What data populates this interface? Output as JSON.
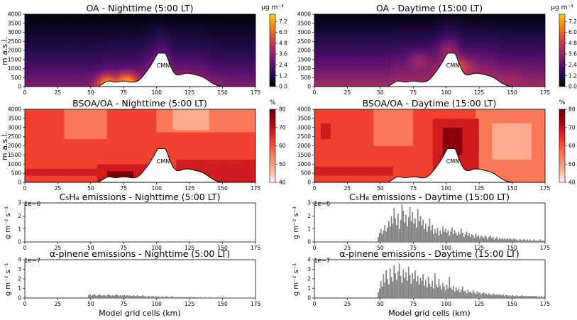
{
  "figure": {
    "xlabel_left": "Model grid cells (km)",
    "xlabel_right": "Model grid cells (km)",
    "mountain_label": "CMN",
    "colors": {
      "bar": "#808080",
      "mountain": "#ffffff",
      "oa_cmap": [
        "#000004",
        "#1f0c48",
        "#550f6d",
        "#88226a",
        "#ba3655",
        "#e35933",
        "#f98e09",
        "#fcd225"
      ],
      "bsoa_cmap": [
        "#fff5f0",
        "#fcbba1",
        "#fc9272",
        "#fb6a4a",
        "#ef3b2c",
        "#cb181d",
        "#99000d",
        "#67000d"
      ]
    }
  },
  "chart_data": [
    {
      "id": "oa_night",
      "type": "heatmap",
      "title": "OA - Nighttime (5:00 LT)",
      "ylabel": "m a.s.l.",
      "colorbar_unit": "µg m⁻³",
      "colorbar_ticks": [
        "0.0",
        "1.2",
        "2.4",
        "3.6",
        "4.8",
        "6.0",
        "7.2"
      ],
      "xlim": [
        0,
        175
      ],
      "ylim": [
        0,
        4000
      ],
      "xticks": [
        0,
        25,
        50,
        75,
        100,
        125,
        150,
        175
      ],
      "yticks": [
        0,
        500,
        1000,
        1500,
        2000,
        2500,
        3000,
        3500,
        4000
      ],
      "value_range": [
        0,
        8
      ],
      "profile": {
        "surface": 3.2,
        "top": 0.4,
        "decay_m": 2300,
        "hotspots": [
          [
            62,
            200,
            6.8
          ],
          [
            78,
            300,
            7.2
          ],
          [
            118,
            250,
            4.2
          ],
          [
            145,
            200,
            3.5
          ]
        ]
      }
    },
    {
      "id": "oa_day",
      "type": "heatmap",
      "title": "OA - Daytime (15:00 LT)",
      "ylabel": "",
      "colorbar_unit": "µg m⁻³",
      "colorbar_ticks": [
        "0.0",
        "1.2",
        "2.4",
        "3.6",
        "4.8",
        "6.0",
        "7.2"
      ],
      "xlim": [
        0,
        175
      ],
      "ylim": [
        0,
        4000
      ],
      "xticks": [
        0,
        25,
        50,
        75,
        100,
        125,
        150,
        175
      ],
      "yticks": [
        0,
        500,
        1000,
        1500,
        2000,
        2500,
        3000,
        3500,
        4000
      ],
      "value_range": [
        0,
        8
      ],
      "profile": {
        "surface": 4.0,
        "top": 0.4,
        "decay_m": 2800,
        "hotspots": [
          [
            80,
            1500,
            5.5
          ],
          [
            100,
            2200,
            5.0
          ],
          [
            112,
            1200,
            5.8
          ],
          [
            150,
            600,
            4.5
          ]
        ]
      }
    },
    {
      "id": "bsoa_night",
      "type": "heatmap",
      "title": "BSOA/OA - Nighttime (5:00 LT)",
      "ylabel": "m a.s.l.",
      "colorbar_unit": "%",
      "colorbar_ticks": [
        "40",
        "50",
        "60",
        "70",
        "80"
      ],
      "xlim": [
        0,
        175
      ],
      "ylim": [
        0,
        4000
      ],
      "xticks": [
        0,
        25,
        50,
        75,
        100,
        125,
        150,
        175
      ],
      "yticks": [
        0,
        500,
        1000,
        1500,
        2000,
        2500,
        3000,
        3500,
        4000
      ],
      "value_range": [
        40,
        80
      ],
      "regions": [
        {
          "value": 62,
          "x": [
            0,
            175
          ],
          "z": [
            0,
            4000
          ]
        },
        {
          "value": 55,
          "x": [
            30,
            62
          ],
          "z": [
            2400,
            4000
          ]
        },
        {
          "value": 55,
          "x": [
            100,
            175
          ],
          "z": [
            2800,
            4000
          ]
        },
        {
          "value": 48,
          "x": [
            112,
            140
          ],
          "z": [
            2900,
            4000
          ]
        },
        {
          "value": 68,
          "x": [
            0,
            80
          ],
          "z": [
            350,
            700
          ]
        },
        {
          "value": 68,
          "x": [
            55,
            100
          ],
          "z": [
            0,
            1000
          ]
        },
        {
          "value": 68,
          "x": [
            115,
            175
          ],
          "z": [
            0,
            1200
          ]
        },
        {
          "value": 78,
          "x": [
            62,
            82
          ],
          "z": [
            100,
            600
          ]
        }
      ]
    },
    {
      "id": "bsoa_day",
      "type": "heatmap",
      "title": "BSOA/OA - Daytime (15:00 LT)",
      "ylabel": "",
      "colorbar_unit": "%",
      "colorbar_ticks": [
        "40",
        "50",
        "60",
        "70",
        "80"
      ],
      "xlim": [
        0,
        175
      ],
      "ylim": [
        0,
        4000
      ],
      "xticks": [
        0,
        25,
        50,
        75,
        100,
        125,
        150,
        175
      ],
      "yticks": [
        0,
        500,
        1000,
        1500,
        2000,
        2500,
        3000,
        3500,
        4000
      ],
      "value_range": [
        40,
        80
      ],
      "regions": [
        {
          "value": 62,
          "x": [
            0,
            175
          ],
          "z": [
            0,
            4000
          ]
        },
        {
          "value": 55,
          "x": [
            45,
            75
          ],
          "z": [
            2000,
            4000
          ]
        },
        {
          "value": 55,
          "x": [
            122,
            175
          ],
          "z": [
            0,
            4000
          ]
        },
        {
          "value": 48,
          "x": [
            135,
            165
          ],
          "z": [
            1200,
            3200
          ]
        },
        {
          "value": 68,
          "x": [
            0,
            60
          ],
          "z": [
            350,
            900
          ]
        },
        {
          "value": 68,
          "x": [
            90,
            125
          ],
          "z": [
            500,
            3500
          ]
        },
        {
          "value": 68,
          "x": [
            5,
            12
          ],
          "z": [
            2400,
            3200
          ]
        },
        {
          "value": 76,
          "x": [
            98,
            112
          ],
          "z": [
            1500,
            3000
          ]
        }
      ]
    },
    {
      "id": "c5h8_night",
      "type": "bar",
      "title": "C₅H₈ emissions - Nighttime (5:00 LT)",
      "ylabel": "g m⁻² s⁻¹",
      "offset_text": "1e−6",
      "xlim": [
        0,
        175
      ],
      "ylim": [
        0,
        3
      ],
      "xticks": [
        0,
        25,
        50,
        75,
        100,
        125,
        150,
        175
      ],
      "yticks": [
        0,
        1,
        2,
        3
      ],
      "values": []
    },
    {
      "id": "c5h8_day",
      "type": "bar",
      "title": "C₅H₈ emissions - Daytime (15:00 LT)",
      "ylabel": "g m⁻² s⁻¹",
      "offset_text": "1e−6",
      "xlim": [
        0,
        175
      ],
      "ylim": [
        0,
        3
      ],
      "xticks": [
        0,
        25,
        50,
        75,
        100,
        125,
        150,
        175
      ],
      "yticks": [
        0,
        1,
        2,
        3
      ],
      "x_start": 48,
      "values": [
        0.4,
        0.7,
        1.0,
        0.6,
        0.9,
        1.3,
        0.8,
        1.1,
        1.6,
        1.2,
        2.0,
        1.4,
        2.6,
        1.8,
        1.3,
        2.2,
        1.0,
        1.7,
        2.9,
        2.4,
        1.5,
        2.1,
        1.2,
        1.9,
        2.7,
        1.6,
        2.3,
        1.4,
        1.8,
        1.1,
        2.5,
        1.6,
        2.0,
        1.3,
        1.7,
        1.0,
        1.4,
        0.8,
        1.2,
        1.8,
        0.9,
        1.3,
        0.6,
        1.0,
        0.7,
        1.1,
        0.5,
        0.9,
        0.6,
        1.2,
        0.8,
        1.0,
        0.7,
        0.9,
        0.5,
        0.8,
        1.1,
        0.6,
        0.9,
        0.7,
        0.5,
        0.8,
        0.6,
        1.0,
        0.7,
        0.4,
        0.6,
        0.8,
        0.5,
        0.7,
        0.4,
        0.6,
        0.5,
        0.3,
        0.6,
        0.4,
        0.5,
        0.3,
        0.5,
        0.4,
        0.3,
        0.5,
        0.4,
        0.2,
        0.4,
        0.5,
        0.3,
        0.4,
        0.2,
        0.3,
        0.4,
        0.2,
        0.3,
        0.2,
        0.3,
        0.2,
        0.3,
        0.2,
        0.3,
        0.2,
        0.3,
        0.2,
        0.2,
        0.3,
        0.2,
        0.2,
        0.1,
        0.2,
        0.2,
        0.1,
        0.2,
        0.2,
        0.1,
        0.2,
        0.1,
        0.2,
        0.1,
        0.1,
        0.2,
        0.1,
        0.1,
        0.1,
        0.1,
        0.2,
        0.1,
        0.1,
        0.1
      ]
    },
    {
      "id": "apinene_night",
      "type": "bar",
      "title": "α-pinene emissions - Nighttime (5:00 LT)",
      "ylabel": "g m⁻² s⁻¹",
      "offset_text": "1e−7",
      "xlim": [
        0,
        175
      ],
      "ylim": [
        0,
        4
      ],
      "xticks": [
        0,
        25,
        50,
        75,
        100,
        125,
        150,
        175
      ],
      "yticks": [
        0,
        1,
        2,
        3,
        4
      ],
      "x_start": 48,
      "values": [
        0.3,
        0.4,
        0.2,
        0.3,
        0.4,
        0.3,
        0.2,
        0.3,
        0.4,
        0.3,
        0.2,
        0.3,
        0.3,
        0.2,
        0.3,
        0.4,
        0.3,
        0.2,
        0.3,
        0.2,
        0.3,
        0.4,
        0.3,
        0.2,
        0.3,
        0.2,
        0.3,
        0.3,
        0.2,
        0.3,
        0.2,
        0.3,
        0.2,
        0.2,
        0.3,
        0.2,
        0.2,
        0.3,
        0.2,
        0.2,
        0.2,
        0.3,
        0.2,
        0.2,
        0.1,
        0.2,
        0.2,
        0.1,
        0.2,
        0.2,
        0.1,
        0.2,
        0.1,
        0.2,
        0.1,
        0.1,
        0.2,
        0.1,
        0.1,
        0.2,
        0.1,
        0.1,
        0.1,
        0.2,
        0.1,
        0.1,
        0.1,
        0.1,
        0.1,
        0.1,
        0.1,
        0.1,
        0.1,
        0.1,
        0.1,
        0.1,
        0.1,
        0.1,
        0.1,
        0.1,
        0.1,
        0.1,
        0.05,
        0.1,
        0.05,
        0.1,
        0.05,
        0.05,
        0.1,
        0.05,
        0.05,
        0.05,
        0.1,
        0.05,
        0.05,
        0.05,
        0.05,
        0.05,
        0.1,
        0.05,
        0.05,
        0.05,
        0.05,
        0.05,
        0.05,
        0.05,
        0.05,
        0.05,
        0.05,
        0.05,
        0.05,
        0.05,
        0.05,
        0.05,
        0.05,
        0.05,
        0.05,
        0.05,
        0.05,
        0.05,
        0.05,
        0.05,
        0.05,
        0.05,
        0.05,
        0.05,
        0.05
      ]
    },
    {
      "id": "apinene_day",
      "type": "bar",
      "title": "α-pinene emissions - Daytime (15:00 LT)",
      "ylabel": "g m⁻² s⁻¹",
      "offset_text": "1e−7",
      "xlim": [
        0,
        175
      ],
      "ylim": [
        0,
        4
      ],
      "xticks": [
        0,
        25,
        50,
        75,
        100,
        125,
        150,
        175
      ],
      "yticks": [
        0,
        1,
        2,
        3,
        4
      ],
      "x_start": 48,
      "values": [
        0.6,
        1.0,
        1.8,
        1.2,
        2.5,
        1.6,
        2.9,
        2.0,
        1.4,
        3.1,
        2.2,
        1.7,
        3.4,
        2.6,
        1.9,
        2.8,
        3.6,
        2.3,
        1.6,
        3.0,
        2.1,
        2.7,
        1.8,
        3.3,
        2.4,
        1.5,
        2.6,
        2.0,
        2.9,
        1.7,
        2.3,
        1.4,
        2.1,
        1.8,
        2.5,
        1.3,
        1.9,
        1.1,
        2.2,
        1.5,
        1.2,
        1.8,
        1.0,
        2.6,
        1.4,
        1.1,
        2.0,
        1.3,
        0.9,
        1.6,
        1.2,
        0.8,
        1.4,
        1.0,
        2.2,
        1.1,
        0.9,
        1.3,
        0.7,
        1.1,
        0.8,
        1.0,
        0.6,
        0.9,
        1.2,
        0.7,
        0.8,
        0.5,
        0.9,
        0.6,
        0.7,
        0.5,
        0.8,
        0.6,
        0.4,
        0.7,
        0.5,
        0.6,
        0.4,
        0.5,
        0.6,
        0.4,
        0.5,
        0.3,
        0.5,
        0.4,
        0.3,
        0.5,
        0.4,
        0.3,
        0.4,
        0.3,
        0.4,
        0.3,
        0.3,
        0.4,
        0.2,
        0.3,
        0.3,
        0.2,
        0.3,
        0.2,
        0.3,
        0.2,
        0.2,
        0.3,
        0.2,
        0.2,
        0.2,
        0.3,
        0.2,
        0.2,
        0.2,
        0.2,
        0.2,
        0.2,
        0.2,
        0.2,
        0.2,
        0.2,
        0.2,
        0.1,
        0.2,
        0.1,
        0.2,
        0.1,
        0.2
      ]
    }
  ]
}
